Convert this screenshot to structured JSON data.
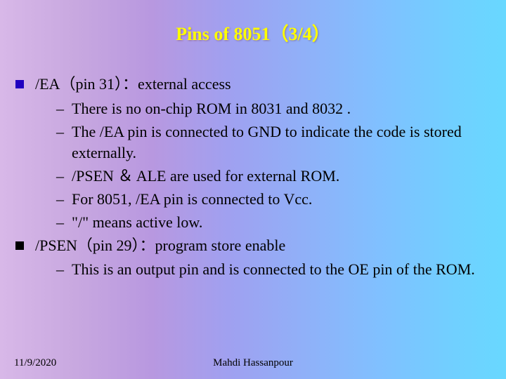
{
  "title": "Pins of 8051（3/4）",
  "title_color": "#ffff00",
  "title_fontsize": 26,
  "body_fontsize": 22,
  "body_font": "Times New Roman",
  "gradient_colors": [
    "#d8b8e8",
    "#c8a8e0",
    "#b898e0",
    "#a0a0f0",
    "#90b0f8",
    "#80c0ff",
    "#70d0ff",
    "#68d8ff"
  ],
  "bullet_square_size": 12,
  "bullet_colors": {
    "first": "#2000c0",
    "second": "#000000"
  },
  "items": [
    {
      "label": "/EA（pin 31）：external access",
      "sub": [
        "There is no on-chip ROM in 8031 and 8032 .",
        "The /EA pin is connected to GND to indicate the code is stored externally.",
        "/PSEN ＆ ALE are used for external ROM.",
        "For 8051, /EA pin is connected to Vcc.",
        "\"/\" means active low."
      ]
    },
    {
      "label": "/PSEN（pin 29）：program store enable",
      "sub": [
        "This is an output pin and is connected to the OE pin of the ROM."
      ]
    }
  ],
  "footer": {
    "date": "11/9/2020",
    "author": "Mahdi Hassanpour"
  }
}
